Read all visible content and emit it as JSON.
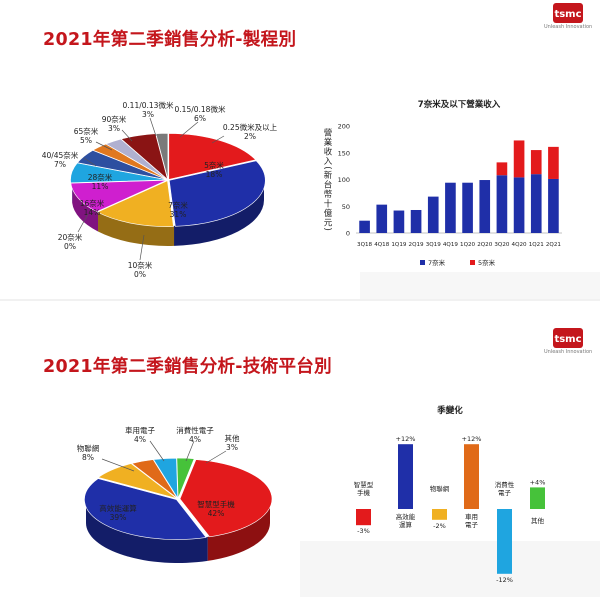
{
  "slide1": {
    "title": "2021年第二季銷售分析-製程別",
    "logo_text": "tsmc",
    "logo_tagline": "Unleash Innovation"
  },
  "slide2": {
    "title": "2021年第二季銷售分析-技術平台別",
    "logo_text": "tsmc",
    "logo_tagline": "Unleash Innovation"
  },
  "chart_data": [
    {
      "type": "pie",
      "title": "",
      "slices": [
        {
          "name": "5奈米",
          "value": 18,
          "label": "18%",
          "color": "#e31a1c"
        },
        {
          "name": "7奈米",
          "value": 31,
          "label": "31%",
          "color": "#1f2fa8"
        },
        {
          "name": "10奈米",
          "value": 0,
          "label": "0%",
          "color": "#1a2a80"
        },
        {
          "name": "16奈米",
          "value": 14,
          "label": "14%",
          "color": "#f0b022"
        },
        {
          "name": "20奈米",
          "value": 0,
          "label": "0%",
          "color": "#d09020"
        },
        {
          "name": "28奈米",
          "value": 11,
          "label": "11%",
          "color": "#cf1fcf"
        },
        {
          "name": "40/45奈米",
          "value": 7,
          "label": "7%",
          "color": "#1fa5e0"
        },
        {
          "name": "65奈米",
          "value": 5,
          "label": "5%",
          "color": "#2d4fa0"
        },
        {
          "name": "90奈米",
          "value": 3,
          "label": "3%",
          "color": "#e07820"
        },
        {
          "name": "0.11/0.13微米",
          "value": 3,
          "label": "3%",
          "color": "#b0b0d0"
        },
        {
          "name": "0.15/0.18微米",
          "value": 6,
          "label": "6%",
          "color": "#8a1414"
        },
        {
          "name": "0.25微米及以上",
          "value": 2,
          "label": "2%",
          "color": "#7a7a7a"
        }
      ]
    },
    {
      "type": "bar",
      "stacked": true,
      "title": "7奈米及以下營業收入",
      "ylabel": "營業收入(新台幣十億元)",
      "ylim": [
        0,
        200
      ],
      "yticks": [
        0,
        50,
        100,
        150,
        200
      ],
      "categories": [
        "3Q18",
        "4Q18",
        "1Q19",
        "2Q19",
        "3Q19",
        "4Q19",
        "1Q20",
        "2Q20",
        "3Q20",
        "4Q20",
        "1Q21",
        "2Q21"
      ],
      "series": [
        {
          "name": "7奈米",
          "color": "#1f2fa8",
          "values": [
            23,
            53,
            42,
            43,
            68,
            94,
            94,
            99,
            108,
            104,
            110,
            101
          ]
        },
        {
          "name": "5奈米",
          "color": "#e31a1c",
          "values": [
            0,
            0,
            0,
            0,
            0,
            0,
            0,
            0,
            24,
            69,
            45,
            60
          ]
        }
      ],
      "legend": "bottom"
    },
    {
      "type": "pie",
      "title": "",
      "slices": [
        {
          "name": "智慧型手機",
          "value": 42,
          "label": "42%",
          "color": "#e31a1c"
        },
        {
          "name": "高效能運算",
          "value": 39,
          "label": "39%",
          "color": "#1f2fa8"
        },
        {
          "name": "物聯網",
          "value": 8,
          "label": "8%",
          "color": "#f0b022"
        },
        {
          "name": "車用電子",
          "value": 4,
          "label": "4%",
          "color": "#e06a18"
        },
        {
          "name": "消費性電子",
          "value": 4,
          "label": "4%",
          "color": "#1fa5e0"
        },
        {
          "name": "其他",
          "value": 3,
          "label": "3%",
          "color": "#46c23a"
        }
      ]
    },
    {
      "type": "bar",
      "title": "季變化",
      "categories": [
        "智慧型手機",
        "高效能運算",
        "物聯網",
        "車用電子",
        "消費性電子",
        "其他"
      ],
      "values": [
        -3,
        12,
        -2,
        12,
        -12,
        4
      ],
      "value_labels": [
        "-3%",
        "+12%",
        "-2%",
        "+12%",
        "-12%",
        "+4%"
      ],
      "colors": [
        "#e31a1c",
        "#1f2fa8",
        "#f0b022",
        "#e06a18",
        "#1fa5e0",
        "#46c23a"
      ]
    }
  ]
}
